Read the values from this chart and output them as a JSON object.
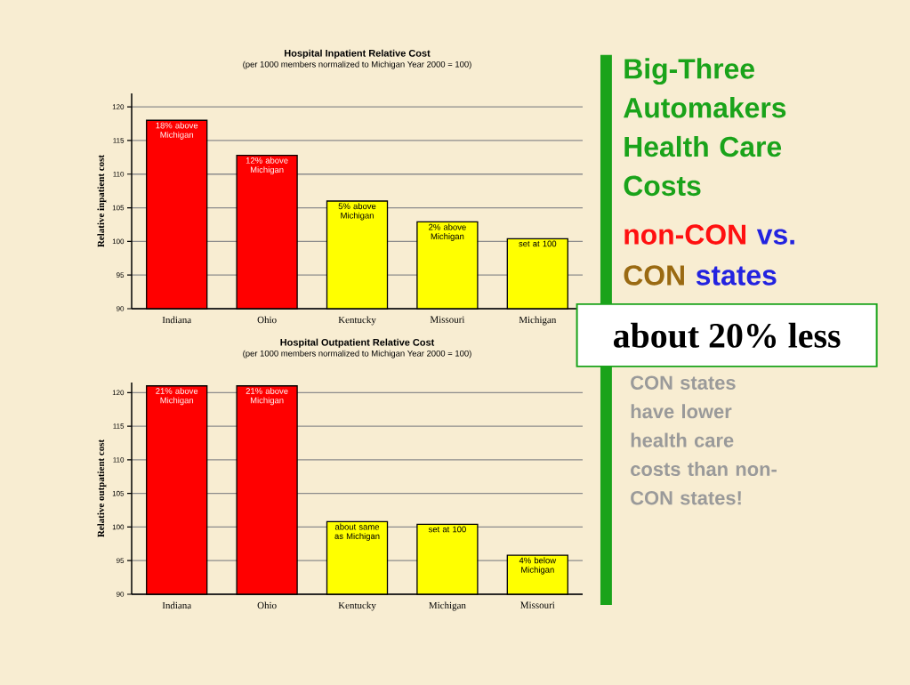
{
  "chart_data": [
    {
      "type": "bar",
      "title": "Hospital Inpatient Relative Cost",
      "subtitle": "(per 1000 members normalized to Michigan Year 2000 = 100)",
      "ylabel": "Relative inpatient cost",
      "categories": [
        "Indiana",
        "Ohio",
        "Kentucky",
        "Missouri",
        "Michigan"
      ],
      "values": [
        118,
        112.8,
        106,
        102.9,
        100.4
      ],
      "colors": [
        "#ff0000",
        "#ff0000",
        "#ffff00",
        "#ffff00",
        "#ffff00"
      ],
      "annotations": [
        {
          "text": "18% above Michigan",
          "x": "Indiana",
          "y": 118
        },
        {
          "text": "12% above Michigan",
          "x": "Ohio",
          "y": 112.8
        },
        {
          "text": "5% above Michigan",
          "x": "Kentucky",
          "y": 106
        },
        {
          "text": "2% above Michigan",
          "x": "Missouri",
          "y": 102.9
        },
        {
          "text": "set at 100",
          "x": "Michigan",
          "y": 100.4
        }
      ],
      "ylim": [
        90,
        122
      ],
      "yticks": [
        90,
        95,
        100,
        105,
        110,
        115,
        120
      ],
      "grid": "y"
    },
    {
      "type": "bar",
      "title": "Hospital Outpatient Relative Cost",
      "subtitle": "(per 1000 members normalized to Michigan Year 2000 = 100)",
      "ylabel": "Relative outpatient cost",
      "categories": [
        "Indiana",
        "Ohio",
        "Kentucky",
        "Michigan",
        "Missouri"
      ],
      "values": [
        121,
        121,
        100.8,
        100.4,
        95.8
      ],
      "colors": [
        "#ff0000",
        "#ff0000",
        "#ffff00",
        "#ffff00",
        "#ffff00"
      ],
      "annotations": [
        {
          "text": "21% above Michigan",
          "x": "Indiana",
          "y": 121
        },
        {
          "text": "21% above Michigan",
          "x": "Ohio",
          "y": 121
        },
        {
          "text": "about same as Michigan",
          "x": "Kentucky",
          "y": 100.8
        },
        {
          "text": "set at 100",
          "x": "Michigan",
          "y": 100.4
        },
        {
          "text": "4% below Michigan",
          "x": "Missouri",
          "y": 95.8
        }
      ],
      "ylim": [
        90,
        121.5
      ],
      "yticks": [
        90,
        95,
        100,
        105,
        110,
        115,
        120
      ],
      "grid": "y"
    },
    {
      "type": "other",
      "title": "Big-Three Automakers Health Care Costs",
      "annotations": [
        "non-CON",
        "vs.",
        "CON",
        "states",
        "about 20% less",
        "CON states have lower health care costs than non-CON states!"
      ]
    }
  ]
}
